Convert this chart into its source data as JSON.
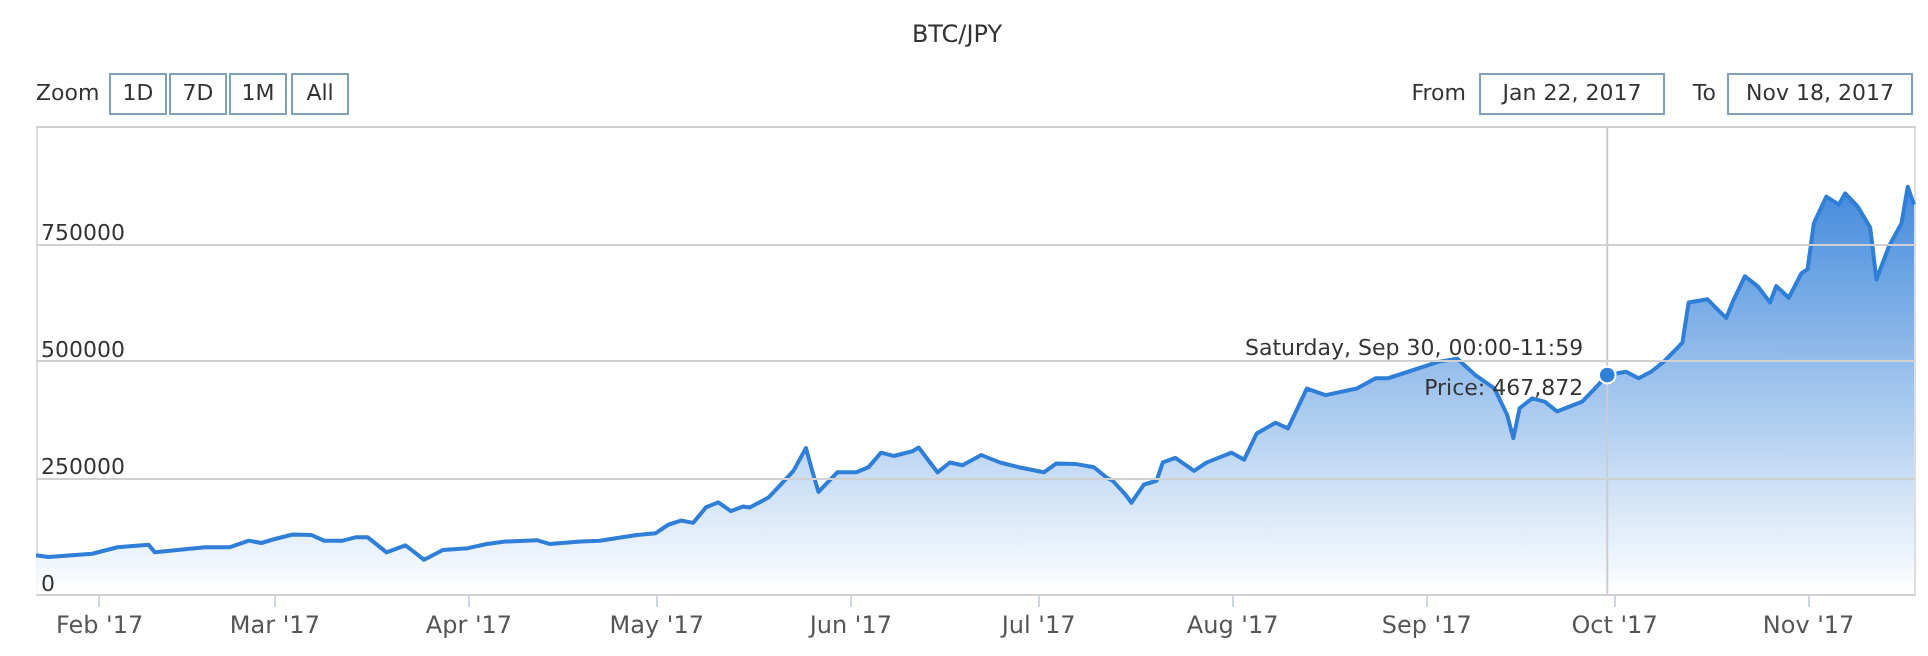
{
  "chart_data": {
    "type": "area",
    "title": "BTC/JPY",
    "x": [
      "2017-01-22",
      "2017-01-24",
      "2017-01-31",
      "2017-02-04",
      "2017-02-09",
      "2017-02-10",
      "2017-02-18",
      "2017-02-22",
      "2017-02-25",
      "2017-02-27",
      "2017-03-01",
      "2017-03-04",
      "2017-03-07",
      "2017-03-09",
      "2017-03-12",
      "2017-03-14",
      "2017-03-16",
      "2017-03-19",
      "2017-03-22",
      "2017-03-23",
      "2017-03-25",
      "2017-03-28",
      "2017-04-01",
      "2017-04-04",
      "2017-04-07",
      "2017-04-12",
      "2017-04-14",
      "2017-04-19",
      "2017-04-22",
      "2017-04-28",
      "2017-05-01",
      "2017-05-03",
      "2017-05-05",
      "2017-05-07",
      "2017-05-09",
      "2017-05-11",
      "2017-05-13",
      "2017-05-15",
      "2017-05-16",
      "2017-05-19",
      "2017-05-21",
      "2017-05-23",
      "2017-05-25",
      "2017-05-26",
      "2017-05-27",
      "2017-05-29",
      "2017-05-30",
      "2017-06-02",
      "2017-06-04",
      "2017-06-06",
      "2017-06-08",
      "2017-06-11",
      "2017-06-12",
      "2017-06-15",
      "2017-06-17",
      "2017-06-19",
      "2017-06-22",
      "2017-06-25",
      "2017-06-28",
      "2017-07-02",
      "2017-07-04",
      "2017-07-07",
      "2017-07-10",
      "2017-07-12",
      "2017-07-13",
      "2017-07-15",
      "2017-07-16",
      "2017-07-18",
      "2017-07-20",
      "2017-07-21",
      "2017-07-23",
      "2017-07-26",
      "2017-07-28",
      "2017-08-01",
      "2017-08-03",
      "2017-08-05",
      "2017-08-08",
      "2017-08-10",
      "2017-08-13",
      "2017-08-16",
      "2017-08-21",
      "2017-08-24",
      "2017-08-26",
      "2017-09-03",
      "2017-09-06",
      "2017-09-09",
      "2017-09-12",
      "2017-09-14",
      "2017-09-15",
      "2017-09-16",
      "2017-09-18",
      "2017-09-20",
      "2017-09-22",
      "2017-09-26",
      "2017-09-28",
      "2017-09-30",
      "2017-10-03",
      "2017-10-05",
      "2017-10-07",
      "2017-10-09",
      "2017-10-11",
      "2017-10-12",
      "2017-10-13",
      "2017-10-16",
      "2017-10-17",
      "2017-10-19",
      "2017-10-20",
      "2017-10-22",
      "2017-10-24",
      "2017-10-26",
      "2017-10-27",
      "2017-10-29",
      "2017-10-31",
      "2017-11-01",
      "2017-11-02",
      "2017-11-04",
      "2017-11-06",
      "2017-11-07",
      "2017-11-09",
      "2017-11-11",
      "2017-11-12",
      "2017-11-14",
      "2017-11-16",
      "2017-11-17",
      "2017-11-18"
    ],
    "series": [
      {
        "color": "#2f7ed8",
        "values": [
          83000,
          79000,
          86000,
          100000,
          105000,
          89000,
          100000,
          100000,
          114000,
          109000,
          117000,
          127000,
          126000,
          114000,
          114000,
          121000,
          121000,
          89000,
          104000,
          94000,
          73000,
          94000,
          98000,
          107000,
          112000,
          115000,
          107000,
          112000,
          114000,
          126000,
          130000,
          148000,
          157000,
          152000,
          185000,
          196000,
          177000,
          187000,
          185000,
          206000,
          234000,
          263000,
          312000,
          263000,
          218000,
          246000,
          260000,
          260000,
          271000,
          302000,
          295000,
          305000,
          313000,
          260000,
          281000,
          275000,
          297000,
          281000,
          271000,
          260000,
          279000,
          278000,
          271000,
          249000,
          242000,
          213000,
          195000,
          234000,
          242000,
          281000,
          291000,
          263000,
          281000,
          302000,
          287000,
          343000,
          366000,
          354000,
          439000,
          425000,
          439000,
          461000,
          461000,
          496000,
          503000,
          467000,
          439000,
          383000,
          333000,
          397000,
          418000,
          411000,
          390000,
          411000,
          439000,
          467872,
          475000,
          461000,
          475000,
          496000,
          523000,
          537000,
          623000,
          630000,
          616000,
          590000,
          623000,
          679000,
          658000,
          623000,
          658000,
          633000,
          685000,
          694000,
          792000,
          849000,
          832000,
          856000,
          828000,
          783000,
          672000,
          743000,
          792000,
          870000,
          832000
        ]
      }
    ],
    "xlim": [
      "2017-01-22",
      "2017-11-18"
    ],
    "xticks": [
      {
        "value": "2017-02-01",
        "label": "Feb '17"
      },
      {
        "value": "2017-03-01",
        "label": "Mar '17"
      },
      {
        "value": "2017-04-01",
        "label": "Apr '17"
      },
      {
        "value": "2017-05-01",
        "label": "May '17"
      },
      {
        "value": "2017-06-01",
        "label": "Jun '17"
      },
      {
        "value": "2017-07-01",
        "label": "Jul '17"
      },
      {
        "value": "2017-08-01",
        "label": "Aug '17"
      },
      {
        "value": "2017-09-01",
        "label": "Sep '17"
      },
      {
        "value": "2017-10-01",
        "label": "Oct '17"
      },
      {
        "value": "2017-11-01",
        "label": "Nov '17"
      }
    ],
    "ylim": [
      0,
      1000000
    ],
    "yticks": [
      0,
      250000,
      500000,
      750000,
      {
        "value": 1000000,
        "label": null
      }
    ],
    "grid": "y",
    "ref_lines": [
      {
        "axis": "x",
        "value": "2017-09-30",
        "color": "#cccccc"
      }
    ],
    "annotations": [
      {
        "text": "Saturday, Sep 30, 00:00-11:59\nPrice: 467,872",
        "x": "2017-09-30",
        "y": 467872
      },
      "Zoom",
      "1D",
      "7D",
      "1M",
      "All",
      "From",
      "Jan 22, 2017",
      "To",
      "Nov 18, 2017"
    ]
  }
}
